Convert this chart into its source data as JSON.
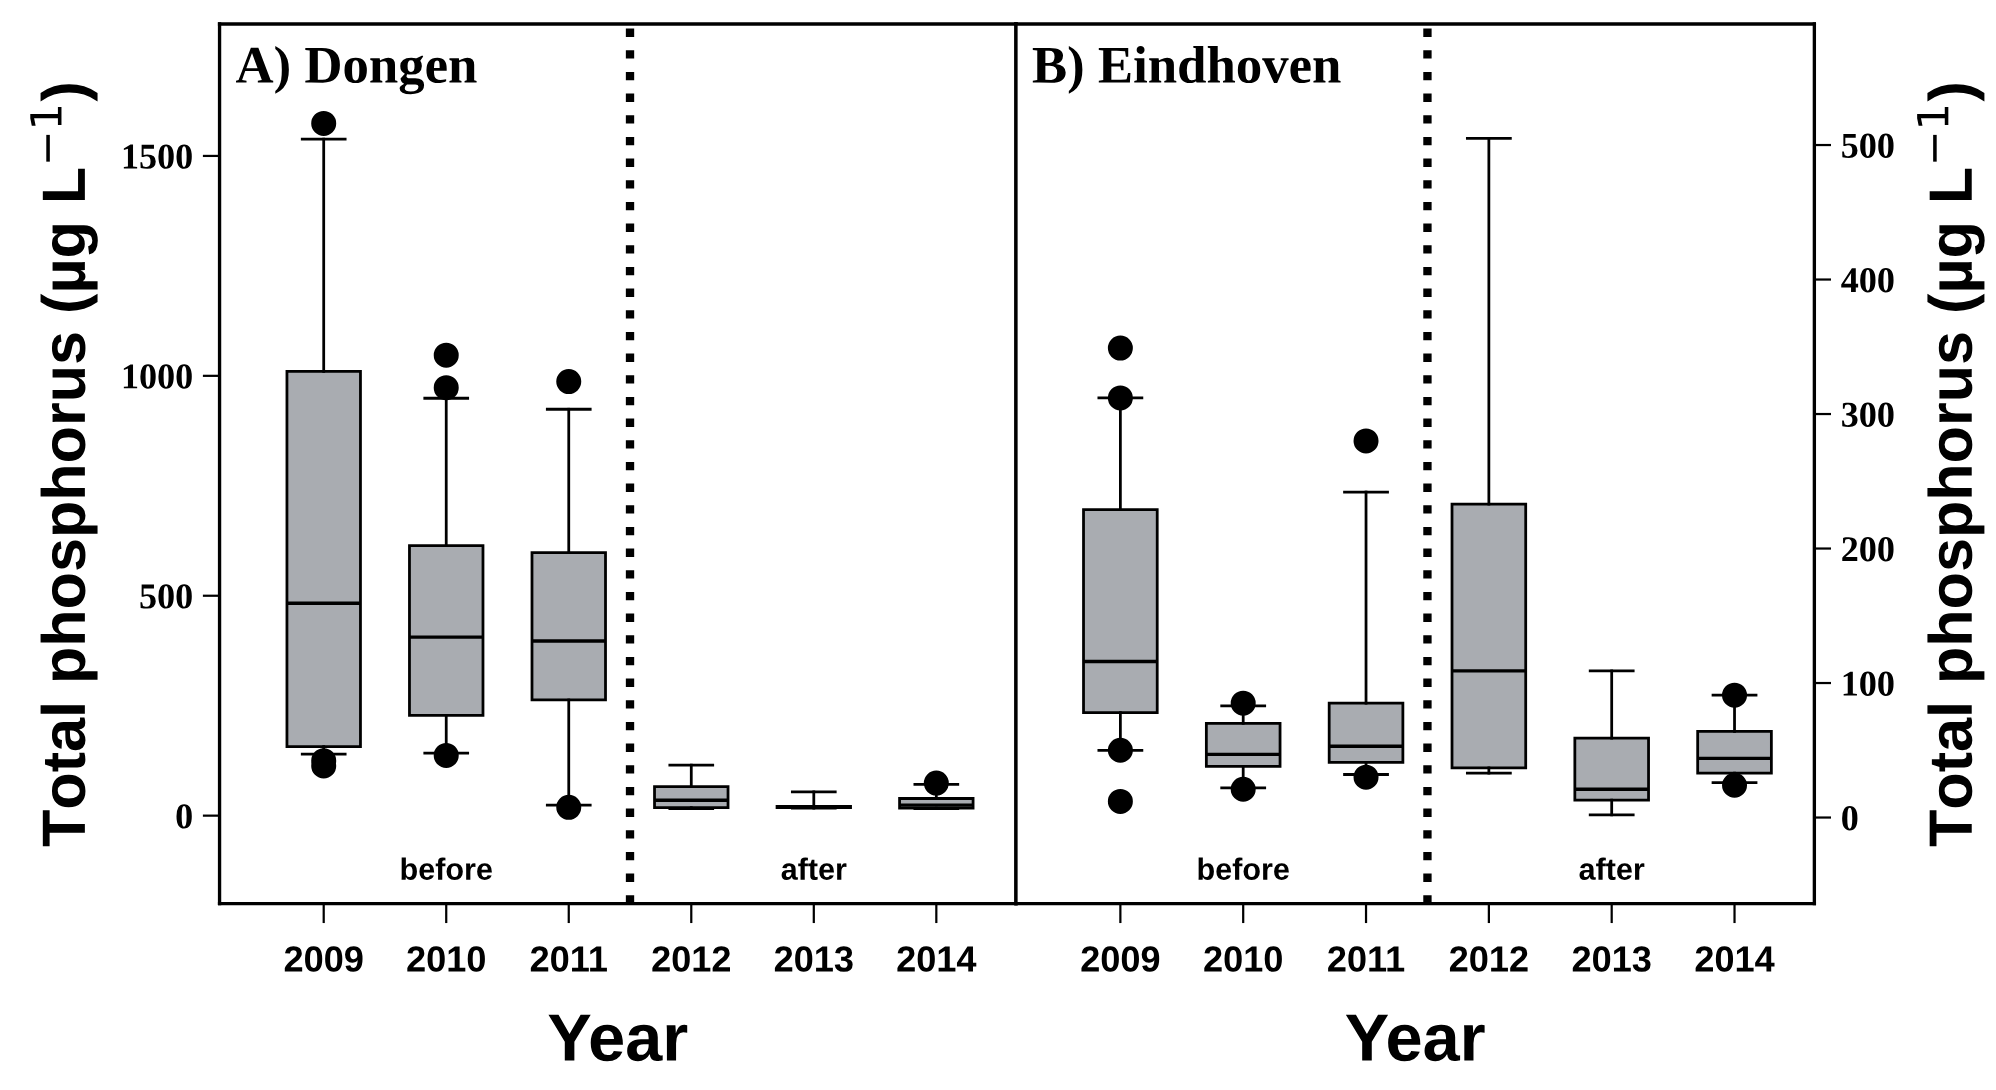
{
  "chart_data": [
    {
      "type": "box",
      "title": "A) Dongen",
      "xlabel": "Year",
      "ylabel": "Total phosphorus (µg L$^{−1}$)",
      "categories": [
        "2009",
        "2010",
        "2011",
        "2012",
        "2013",
        "2014"
      ],
      "color": "#a9acb1",
      "ylim": [
        -200,
        1800
      ],
      "yticks": [
        0,
        500,
        1000,
        1500
      ],
      "grid": false,
      "annotations": [
        "before",
        "after"
      ],
      "boxes": [
        {
          "low": 140,
          "q1": 157,
          "median": 483,
          "q3": 1010,
          "high": 1538,
          "outliers": [
            1574,
            125,
            113
          ]
        },
        {
          "low": 142,
          "q1": 228,
          "median": 406,
          "q3": 614,
          "high": 949,
          "outliers": [
            1047,
            973,
            137
          ]
        },
        {
          "low": 24,
          "q1": 263,
          "median": 397,
          "q3": 598,
          "high": 924,
          "outliers": [
            987,
            19
          ]
        },
        {
          "low": 16,
          "q1": 18,
          "median": 35,
          "q3": 66,
          "high": 115
        },
        {
          "low": 17,
          "q1": 18,
          "median": 19,
          "q3": 21,
          "high": 54
        },
        {
          "low": 16,
          "q1": 17,
          "median": 24,
          "q3": 39,
          "high": 71,
          "outliers": [
            74
          ]
        }
      ]
    },
    {
      "type": "box",
      "title": "B) Eindhoven",
      "xlabel": "Year",
      "y2label": "Total phosphorus (µg L$^{−1}$)",
      "categories": [
        "2009",
        "2010",
        "2011",
        "2012",
        "2013",
        "2014"
      ],
      "y2lim": [
        -64,
        590
      ],
      "y2ticks": [
        0,
        100,
        200,
        300,
        400,
        500
      ],
      "grid": false,
      "annotations": [
        "before",
        "after"
      ],
      "series": [
        {
          "axis": "y2",
          "color": "#a9acb1",
          "boxes": [
            {
              "low": 50,
              "q1": 78,
              "median": 116,
              "q3": 229,
              "high": 312,
              "outliers": [
                349,
                312,
                50,
                12
              ]
            },
            {
              "low": 22,
              "q1": 38,
              "median": 47,
              "q3": 70,
              "high": 83,
              "outliers": [
                85,
                21
              ]
            },
            {
              "low": 32,
              "q1": 41,
              "median": 53,
              "q3": 85,
              "high": 242,
              "outliers": [
                280,
                30
              ]
            },
            {
              "low": 33,
              "q1": 37,
              "median": 109,
              "q3": 233,
              "high": 505
            },
            {
              "low": 2,
              "q1": 13,
              "median": 21,
              "q3": 59,
              "high": 109
            },
            {
              "low": 26,
              "q1": 33,
              "median": 44,
              "q3": 64,
              "high": 91,
              "outliers": [
                91,
                24
              ]
            }
          ]
        }
      ]
    }
  ]
}
